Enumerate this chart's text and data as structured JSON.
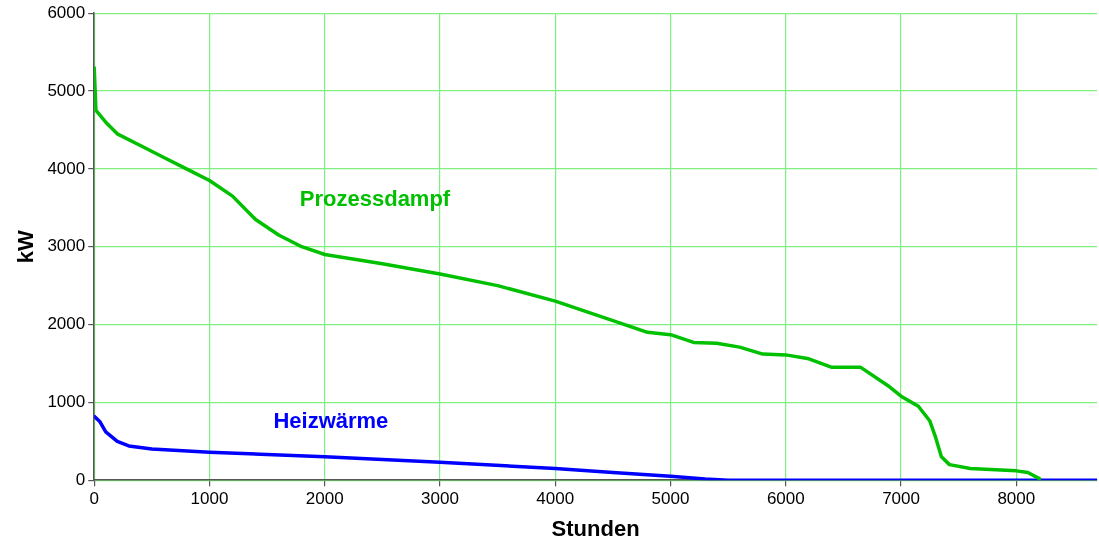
{
  "chart_data": {
    "type": "line",
    "xlabel": "Stunden",
    "ylabel": "kW",
    "xlim": [
      0,
      8700
    ],
    "xticks": [
      0,
      1000,
      2000,
      3000,
      4000,
      5000,
      6000,
      7000,
      8000
    ],
    "ylim": [
      0,
      6000
    ],
    "yticks": [
      0,
      1000,
      2000,
      3000,
      4000,
      5000,
      6000
    ],
    "grid": true,
    "legend": false,
    "marker": "none",
    "line_style": "solid",
    "series": [
      {
        "name": "Prozessdampf",
        "color": "#00c000",
        "x": [
          0,
          15,
          100,
          200,
          400,
          600,
          800,
          1000,
          1200,
          1400,
          1600,
          1800,
          2000,
          2500,
          3000,
          3500,
          4000,
          4500,
          4800,
          5000,
          5200,
          5400,
          5600,
          5800,
          6000,
          6200,
          6400,
          6650,
          6900,
          7000,
          7150,
          7250,
          7300,
          7350,
          7420,
          7600,
          8000,
          8100,
          8200
        ],
        "values": [
          5300,
          4750,
          4600,
          4450,
          4300,
          4150,
          4000,
          3850,
          3650,
          3350,
          3150,
          3000,
          2900,
          2780,
          2650,
          2500,
          2300,
          2050,
          1900,
          1870,
          1770,
          1760,
          1710,
          1620,
          1610,
          1560,
          1450,
          1450,
          1200,
          1080,
          950,
          760,
          550,
          300,
          200,
          150,
          120,
          100,
          20
        ]
      },
      {
        "name": "Heizwärme",
        "color": "#0000ff",
        "x": [
          0,
          50,
          100,
          200,
          300,
          500,
          1000,
          2000,
          3000,
          4000,
          4500,
          5000,
          5300,
          5500,
          8700
        ],
        "values": [
          820,
          750,
          620,
          500,
          440,
          400,
          360,
          300,
          230,
          150,
          100,
          50,
          15,
          0,
          0
        ]
      }
    ]
  }
}
